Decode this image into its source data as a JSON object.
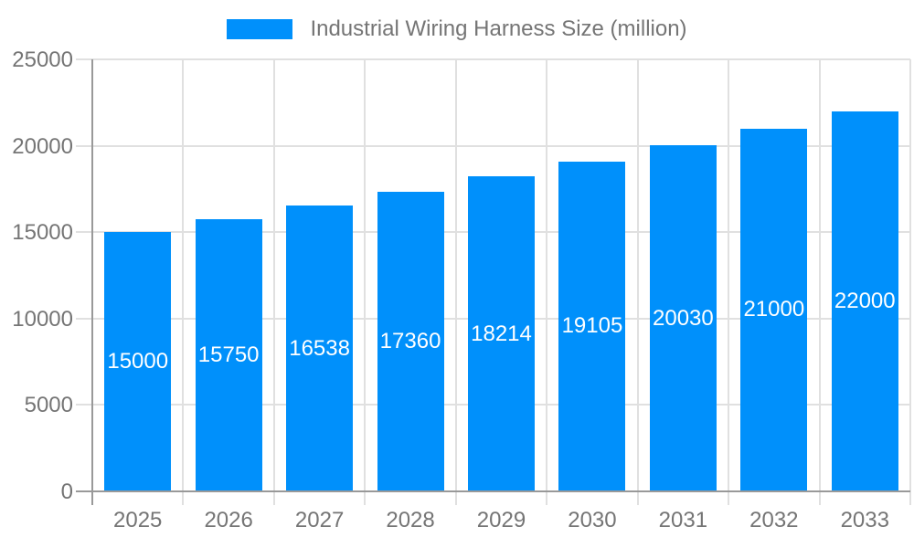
{
  "legend": {
    "label": "Industrial Wiring Harness Size (million)"
  },
  "chart_data": {
    "type": "bar",
    "title": "Industrial Wiring Harness Size (million)",
    "categories": [
      "2025",
      "2026",
      "2027",
      "2028",
      "2029",
      "2030",
      "2031",
      "2032",
      "2033"
    ],
    "series": [
      {
        "name": "Industrial Wiring Harness Size (million)",
        "values": [
          15000,
          15750,
          16538,
          17360,
          18214,
          19105,
          20030,
          21000,
          22000
        ]
      }
    ],
    "data_labels": [
      "15000",
      "15750",
      "16538",
      "17360",
      "18214",
      "19105",
      "20030",
      "21000",
      "22000"
    ],
    "xlabel": "",
    "ylabel": "",
    "ylim": [
      0,
      25000
    ],
    "yticks": [
      0,
      5000,
      10000,
      15000,
      20000,
      25000
    ],
    "ytick_labels": [
      "0",
      "5000",
      "10000",
      "15000",
      "20000",
      "25000"
    ],
    "grid": true,
    "legend_position": "top"
  },
  "colors": {
    "bar": "#0090FB",
    "grid": "#E0E0E0",
    "axis": "#999999",
    "text": "#757575",
    "data_label": "#FFFFFF",
    "background": "#FFFFFF"
  }
}
